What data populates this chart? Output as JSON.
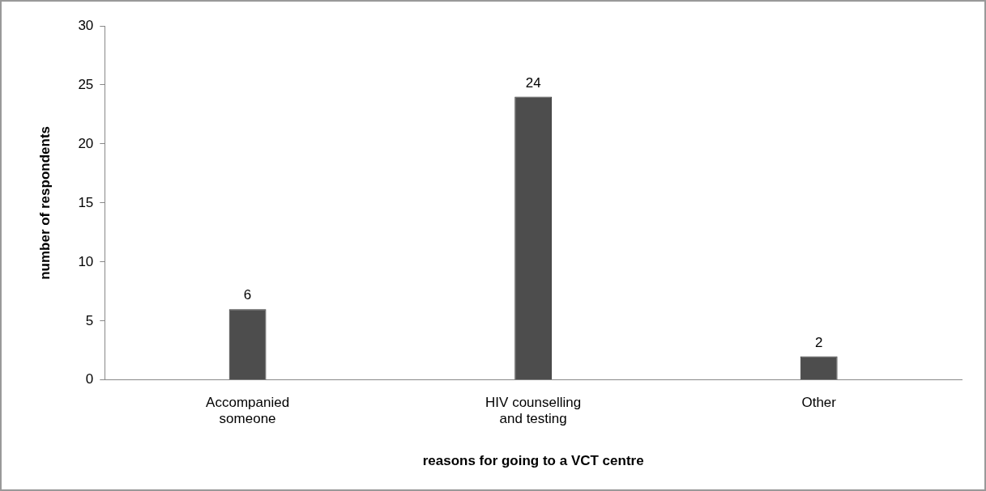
{
  "chart_data": {
    "type": "bar",
    "xlabel": "reasons for going to a VCT centre",
    "ylabel": "number of respondents",
    "categories": [
      "Accompanied someone",
      "HIV counselling and testing",
      "Other"
    ],
    "values": [
      6,
      24,
      2
    ],
    "color": "#4d4d4d",
    "ylim": [
      0,
      30
    ],
    "yticks": [
      0,
      5,
      10,
      15,
      20,
      25,
      30
    ],
    "grid": false,
    "legend": false,
    "data_labels": true
  }
}
